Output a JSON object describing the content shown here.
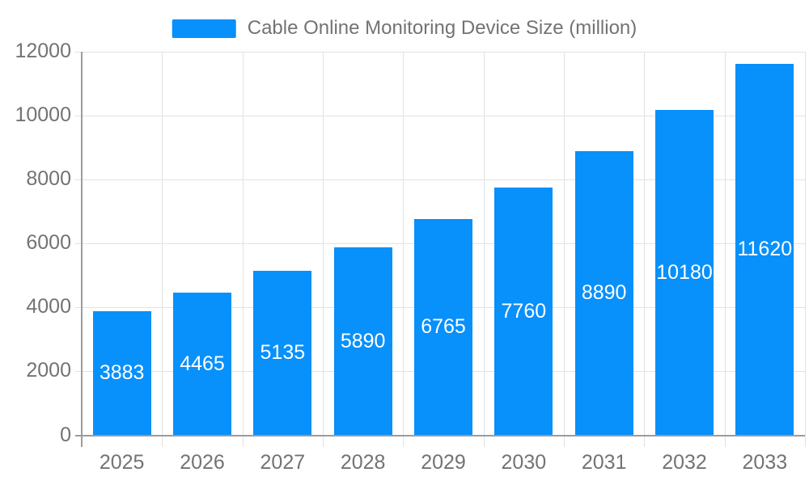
{
  "chart_data": {
    "type": "bar",
    "title": "Cable Online Monitoring Device Size (million)",
    "legend": [
      "Cable Online Monitoring Device Size (million)"
    ],
    "legend_position": "top",
    "categories": [
      "2025",
      "2026",
      "2027",
      "2028",
      "2029",
      "2030",
      "2031",
      "2032",
      "2033"
    ],
    "values": [
      3883,
      4465,
      5135,
      5890,
      6765,
      7760,
      8890,
      10180,
      11620
    ],
    "bar_labels": [
      "3883",
      "4465",
      "5135",
      "5890",
      "6765",
      "7760",
      "8890",
      "10180",
      "11620"
    ],
    "xlabel": "",
    "ylabel": "",
    "ylim": [
      0,
      12000
    ],
    "yticks": [
      0,
      2000,
      4000,
      6000,
      8000,
      10000,
      12000
    ],
    "grid": true,
    "bar_labels_visible": true,
    "bar_label_placement": "inside-center",
    "colors": {
      "bar": "#0890FB",
      "bar_label": "#FFFFFF",
      "axis_text": "#737373",
      "grid_line": "#E2E2E2",
      "axis_line": "#9C9C9C",
      "background": "#FFFFFF"
    }
  }
}
